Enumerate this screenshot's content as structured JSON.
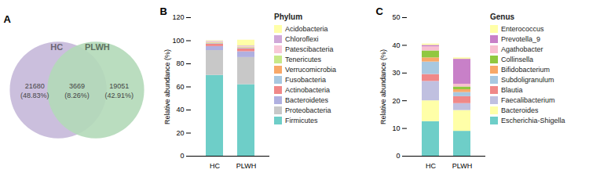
{
  "chart_data": [
    {
      "type": "venn",
      "title": "A",
      "sets": [
        {
          "name": "HC",
          "color": "#cbbfdd"
        },
        {
          "name": "PLWH",
          "color": "#b2d9b8"
        }
      ],
      "values": [
        21680,
        3669,
        19051
      ],
      "value_labels": [
        "21680\n(48.83%)",
        "3669\n(8.26%)",
        "19051\n(42.91%)"
      ],
      "data_labels": true
    },
    {
      "type": "bar",
      "title": "B",
      "stacked": true,
      "categories": [
        "HC",
        "PLWH"
      ],
      "ylabel": "Relative abundance (%)",
      "ylim": [
        0,
        120
      ],
      "yticks": [
        0,
        20,
        40,
        60,
        80,
        100,
        120
      ],
      "grid": false,
      "legend": "right",
      "legend_title": "Phylum",
      "series": [
        {
          "name": "Firmicutes",
          "color": "#6ecec8",
          "values": [
            70.0,
            62.0
          ]
        },
        {
          "name": "Proteobacteria",
          "color": "#c8c8c8",
          "values": [
            21.5,
            23.5
          ]
        },
        {
          "name": "Bacteroidetes",
          "color": "#b0b0e0",
          "values": [
            3.5,
            5.0
          ]
        },
        {
          "name": "Actinobacteria",
          "color": "#f08888",
          "values": [
            2.0,
            2.5
          ]
        },
        {
          "name": "Fusobacteria",
          "color": "#a8c8e0",
          "values": [
            0.5,
            0.5
          ]
        },
        {
          "name": "Verrucomicrobia",
          "color": "#f8a868",
          "values": [
            0.5,
            0.5
          ]
        },
        {
          "name": "Tenericutes",
          "color": "#c8e888",
          "values": [
            0.5,
            0.5
          ]
        },
        {
          "name": "Patescibacteria",
          "color": "#f8c8d8",
          "values": [
            0.5,
            0.5
          ]
        },
        {
          "name": "Chloroflexi",
          "color": "#d0a8d8",
          "values": [
            0.5,
            0.5
          ]
        },
        {
          "name": "Acidobacteria",
          "color": "#ffffa8",
          "values": [
            0.5,
            5.0
          ]
        }
      ]
    },
    {
      "type": "bar",
      "title": "C",
      "stacked": true,
      "categories": [
        "HC",
        "PLWH"
      ],
      "ylabel": "Relative abundance (%)",
      "ylim": [
        0,
        50
      ],
      "yticks": [
        0,
        10,
        20,
        30,
        40,
        50
      ],
      "grid": false,
      "legend": "right",
      "legend_title": "Genus",
      "series": [
        {
          "name": "Escherichia-Shigella",
          "color": "#6ecec8",
          "values": [
            12.5,
            9.0
          ]
        },
        {
          "name": "Bacteroides",
          "color": "#ffffa8",
          "values": [
            7.5,
            7.5
          ]
        },
        {
          "name": "Faecalibacterium",
          "color": "#c0c0e0",
          "values": [
            7.0,
            2.5
          ]
        },
        {
          "name": "Blautia",
          "color": "#f08888",
          "values": [
            2.5,
            2.5
          ]
        },
        {
          "name": "Subdoligranulum",
          "color": "#a8c8e0",
          "values": [
            4.5,
            1.5
          ]
        },
        {
          "name": "Bifidobacterium",
          "color": "#f8a868",
          "values": [
            1.5,
            1.0
          ]
        },
        {
          "name": "Collinsella",
          "color": "#90c840",
          "values": [
            2.5,
            1.0
          ]
        },
        {
          "name": "Agathobacter",
          "color": "#f8c0d0",
          "values": [
            1.5,
            1.0
          ]
        },
        {
          "name": "Prevotella_9",
          "color": "#c880c8",
          "values": [
            0.5,
            9.0
          ]
        },
        {
          "name": "Enterococcus",
          "color": "#ffffa8",
          "values": [
            0.5,
            0.5
          ]
        }
      ]
    }
  ]
}
